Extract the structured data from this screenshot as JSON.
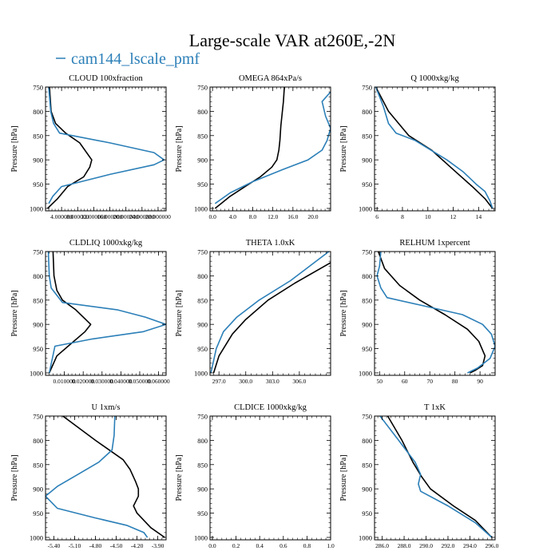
{
  "figure": {
    "title": "Large-scale VAR at260E,-2N",
    "legend_label": "cam144_lscale_pmf",
    "legend_color": "#2b7fb8",
    "ylabel": "Pressure [hPa]"
  },
  "chart_data": [
    {
      "type": "line",
      "title": "CLOUD  100xfraction",
      "ylabel": "Pressure [hPa]",
      "xlim": [
        0.0,
        3e-05
      ],
      "ylim": [
        1005,
        750
      ],
      "xticks": [
        4e-06,
        8e-06,
        1.2e-05,
        1.6e-05,
        2e-05,
        2.4e-05,
        2.8e-05
      ],
      "xticklabels": [
        "4.000000",
        "8.000000",
        "12.000000",
        "16.000000",
        "20.000000",
        "24.000000",
        "28.000000"
      ],
      "yticks": [
        750,
        800,
        850,
        900,
        950,
        1000
      ],
      "series": [
        {
          "color": "#000000",
          "x": [
            1e-06,
            1.4e-06,
            2.5e-06,
            5e-06,
            8.5e-06,
            1.15e-05,
            1.1e-05,
            9.5e-06,
            5.5e-06,
            3e-06,
            5e-07
          ],
          "y": [
            750,
            800,
            825,
            845,
            865,
            900,
            915,
            935,
            955,
            980,
            1000
          ]
        },
        {
          "color": "#2b7fb8",
          "x": [
            8e-07,
            1.3e-06,
            2e-06,
            3.5e-06,
            1.6e-05,
            2.7e-05,
            2.95e-05,
            2.7e-05,
            1.6e-05,
            4e-06,
            1.8e-06,
            8e-07
          ],
          "y": [
            750,
            800,
            825,
            845,
            865,
            885,
            900,
            910,
            930,
            955,
            975,
            990
          ]
        }
      ]
    },
    {
      "type": "line",
      "title": "OMEGA  864xPa/s",
      "ylabel": "Pressure [hPa]",
      "xlim": [
        -0.5,
        23.5
      ],
      "ylim": [
        1005,
        750
      ],
      "xticks": [
        0,
        4,
        8,
        12,
        16,
        20
      ],
      "xticklabels": [
        "0.0",
        "4.0",
        "8.0",
        "12.0",
        "16.0",
        "20.0"
      ],
      "yticks": [
        750,
        800,
        850,
        900,
        950,
        1000
      ],
      "series": [
        {
          "color": "#000000",
          "x": [
            14.3,
            14.1,
            13.9,
            13.6,
            13.4,
            13.2,
            12.8,
            11.8,
            9.5,
            6.5,
            3.5,
            0.5
          ],
          "y": [
            750,
            780,
            800,
            830,
            860,
            880,
            900,
            915,
            935,
            955,
            975,
            1000
          ]
        },
        {
          "color": "#2b7fb8",
          "x": [
            23.5,
            21.8,
            22.5,
            23.5,
            22.8,
            21.8,
            19.0,
            14.0,
            8.0,
            3.5,
            0.5
          ],
          "y": [
            760,
            780,
            810,
            835,
            860,
            880,
            900,
            920,
            945,
            968,
            990
          ]
        }
      ]
    },
    {
      "type": "line",
      "title": "Q  1000xkg/kg",
      "ylabel": "Pressure [hPa]",
      "xlim": [
        5.8,
        15.3
      ],
      "ylim": [
        1005,
        750
      ],
      "xticks": [
        6,
        8,
        10,
        12,
        14
      ],
      "xticklabels": [
        "6",
        "8",
        "10",
        "12",
        "14"
      ],
      "yticks": [
        750,
        800,
        850,
        900,
        950,
        1000
      ],
      "series": [
        {
          "color": "#000000",
          "x": [
            5.9,
            6.9,
            8.5,
            10.3,
            12.0,
            13.5,
            14.5,
            15.1
          ],
          "y": [
            750,
            800,
            850,
            880,
            920,
            955,
            980,
            1000
          ]
        },
        {
          "color": "#2b7fb8",
          "x": [
            5.9,
            6.5,
            6.9,
            7.5,
            9.0,
            11.5,
            12.8,
            13.8,
            14.5,
            14.9,
            15.1
          ],
          "y": [
            750,
            790,
            825,
            845,
            860,
            900,
            925,
            950,
            965,
            985,
            1000
          ]
        }
      ]
    },
    {
      "type": "line",
      "title": "CLDLIQ  1000xkg/kg",
      "ylabel": "Pressure [hPa]",
      "xlim": [
        0.0,
        0.064
      ],
      "ylim": [
        1005,
        750
      ],
      "xticks": [
        0.01,
        0.02,
        0.03,
        0.04,
        0.05,
        0.06
      ],
      "xticklabels": [
        "0.010000",
        "0.020000",
        "0.030000",
        "0.040000",
        "0.050000",
        "0.060000"
      ],
      "yticks": [
        750,
        800,
        850,
        900,
        950,
        1000
      ],
      "series": [
        {
          "color": "#000000",
          "x": [
            0.004,
            0.0045,
            0.006,
            0.009,
            0.016,
            0.024,
            0.021,
            0.012,
            0.006,
            0.002
          ],
          "y": [
            750,
            800,
            830,
            850,
            870,
            900,
            915,
            945,
            965,
            1000
          ]
        },
        {
          "color": "#2b7fb8",
          "x": [
            0.0015,
            0.002,
            0.003,
            0.009,
            0.038,
            0.053,
            0.064,
            0.052,
            0.025,
            0.005,
            0.002
          ],
          "y": [
            750,
            800,
            825,
            855,
            870,
            885,
            900,
            915,
            930,
            945,
            1000
          ]
        }
      ]
    },
    {
      "type": "line",
      "title": "THETA  1.0xK",
      "ylabel": "Pressure [hPa]",
      "xlim": [
        296.0,
        309.5
      ],
      "ylim": [
        1005,
        750
      ],
      "xticks": [
        297,
        300,
        303,
        306
      ],
      "xticklabels": [
        "297.0",
        "300.0",
        "303.0",
        "306.0"
      ],
      "yticks": [
        750,
        800,
        850,
        900,
        950,
        1000
      ],
      "series": [
        {
          "color": "#000000",
          "x": [
            309.5,
            305.5,
            302.5,
            300.0,
            298.5,
            297.0,
            296.4
          ],
          "y": [
            773,
            815,
            850,
            890,
            920,
            965,
            1000
          ]
        },
        {
          "color": "#2b7fb8",
          "x": [
            309.3,
            305.0,
            301.5,
            299.0,
            297.5,
            296.7,
            296.1
          ],
          "y": [
            750,
            810,
            850,
            885,
            915,
            950,
            1000
          ]
        }
      ]
    },
    {
      "type": "line",
      "title": "RELHUM  1xpercent",
      "ylabel": "Pressure [hPa]",
      "xlim": [
        48,
        96
      ],
      "ylim": [
        1005,
        750
      ],
      "xticks": [
        50,
        60,
        70,
        80,
        90
      ],
      "xticklabels": [
        "50",
        "60",
        "70",
        "80",
        "90"
      ],
      "yticks": [
        750,
        800,
        850,
        900,
        950,
        1000
      ],
      "series": [
        {
          "color": "#000000",
          "x": [
            49.5,
            52.0,
            58.0,
            66.0,
            76.0,
            85.0,
            89.5,
            92.0,
            91.0,
            88.0,
            86.0
          ],
          "y": [
            750,
            785,
            820,
            850,
            880,
            910,
            935,
            965,
            985,
            995,
            1000
          ]
        },
        {
          "color": "#2b7fb8",
          "x": [
            50.5,
            50.0,
            49.0,
            50.5,
            53.0,
            66.0,
            83.0,
            91.0,
            94.5,
            96.0,
            94.0,
            89.0,
            85.0
          ],
          "y": [
            750,
            780,
            800,
            825,
            845,
            860,
            880,
            900,
            920,
            945,
            970,
            990,
            1000
          ]
        }
      ]
    },
    {
      "type": "line",
      "title": "U  1xm/s",
      "ylabel": "Pressure [hPa]",
      "xlim": [
        -5.52,
        -3.78
      ],
      "ylim": [
        1005,
        750
      ],
      "xticks": [
        -5.4,
        -5.1,
        -4.8,
        -4.5,
        -4.2,
        -3.9
      ],
      "xticklabels": [
        "-5.40",
        "-5.10",
        "-4.80",
        "-4.50",
        "-4.20",
        "-3.90"
      ],
      "yticks": [
        750,
        800,
        850,
        900,
        950,
        1000
      ],
      "series": [
        {
          "color": "#000000",
          "x": [
            -5.27,
            -4.8,
            -4.4,
            -4.3,
            -4.22,
            -4.18,
            -4.18,
            -4.25,
            -4.2,
            -4.0,
            -3.8
          ],
          "y": [
            750,
            800,
            840,
            860,
            885,
            900,
            915,
            935,
            950,
            980,
            1000
          ]
        },
        {
          "color": "#2b7fb8",
          "x": [
            -4.52,
            -4.53,
            -4.56,
            -4.75,
            -5.05,
            -5.35,
            -5.52,
            -5.35,
            -4.8,
            -4.35,
            -4.1,
            -4.05
          ],
          "y": [
            750,
            790,
            820,
            845,
            870,
            895,
            915,
            940,
            960,
            975,
            990,
            1000
          ]
        }
      ]
    },
    {
      "type": "line",
      "title": "CLDICE  1000xkg/kg",
      "ylabel": "Pressure [hPa]",
      "xlim": [
        -0.02,
        1.0
      ],
      "ylim": [
        1005,
        750
      ],
      "xticks": [
        0.0,
        0.2,
        0.4,
        0.6,
        0.8,
        1.0
      ],
      "xticklabels": [
        "0.0",
        "0.2",
        "0.4",
        "0.6",
        "0.8",
        "1.0"
      ],
      "yticks": [
        750,
        800,
        850,
        900,
        950,
        1000
      ],
      "series": []
    },
    {
      "type": "line",
      "title": "T  1xK",
      "ylabel": "Pressure [hPa]",
      "xlim": [
        285.3,
        296.3
      ],
      "ylim": [
        1005,
        750
      ],
      "xticks": [
        286,
        288,
        290,
        292,
        294,
        296
      ],
      "xticklabels": [
        "286.0",
        "288.0",
        "290.0",
        "292.0",
        "294.0",
        "296.0"
      ],
      "yticks": [
        750,
        800,
        850,
        900,
        950,
        1000
      ],
      "series": [
        {
          "color": "#000000",
          "x": [
            286.5,
            287.8,
            288.8,
            289.6,
            290.4,
            292.5,
            294.5,
            296.0
          ],
          "y": [
            750,
            800,
            845,
            875,
            900,
            935,
            965,
            1000
          ]
        },
        {
          "color": "#2b7fb8",
          "x": [
            285.8,
            287.5,
            289.0,
            289.5,
            289.3,
            289.5,
            292.0,
            294.5,
            296.0
          ],
          "y": [
            750,
            800,
            845,
            870,
            890,
            905,
            935,
            970,
            1000
          ]
        }
      ]
    }
  ]
}
